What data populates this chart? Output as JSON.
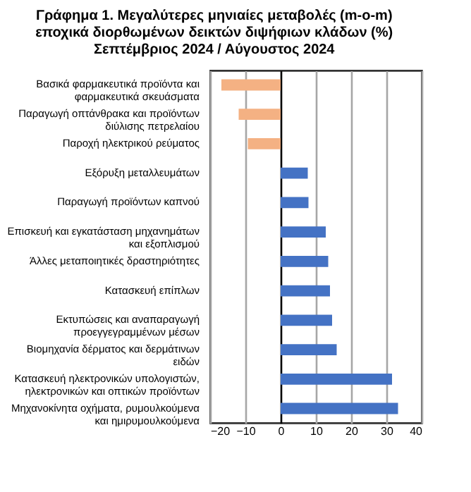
{
  "chart_data": {
    "type": "bar",
    "orientation": "horizontal",
    "title": "Γράφημα 1. Μεγαλύτερες μηνιαίες μεταβολές (m-o-m) εποχικά διορθωμένων δεικτών διψήφιων κλάδων (%) Σεπτέμβριος 2024 / Αύγουστος  2024",
    "categories": [
      "Βασικά φαρμακευτικά προϊόντα και φαρμακευτικά σκευάσματα",
      "Παραγωγή οπτάνθρακα και προϊόντων διύλισης πετρελαίου",
      "Παροχή ηλεκτρικού ρεύματος",
      "Εξόρυξη μεταλλευμάτων",
      "Παραγωγή προϊόντων καπνού",
      "Επισκευή και εγκατάσταση μηχανημάτων και εξοπλισμού",
      "Άλλες μεταποιητικές δραστηριότητες",
      "Κατασκευή επίπλων",
      "Εκτυπώσεις και αναπαραγωγή προεγγεγραμμένων μέσων",
      "Βιομηχανία δέρματος και δερμάτινων ειδών",
      "Κατασκευή ηλεκτρονικών υπολογιστών, ηλεκτρονικών και οπτικών προϊόντων",
      "Μηχανοκίνητα οχήματα, ρυμουλκούμενα και ημιρυμουλκούμενα"
    ],
    "values": [
      -16.8,
      -11.9,
      -9.3,
      7.7,
      7.9,
      12.8,
      13.5,
      14.0,
      14.6,
      15.9,
      31.6,
      33.3
    ],
    "colors": [
      "#f4b183",
      "#f4b183",
      "#f4b183",
      "#4472c4",
      "#4472c4",
      "#4472c4",
      "#4472c4",
      "#4472c4",
      "#4472c4",
      "#4472c4",
      "#4472c4",
      "#4472c4"
    ],
    "xlim": [
      -20,
      40
    ],
    "xticks": [
      -20,
      -10,
      0,
      10,
      20,
      30,
      40
    ],
    "grid": "x"
  }
}
